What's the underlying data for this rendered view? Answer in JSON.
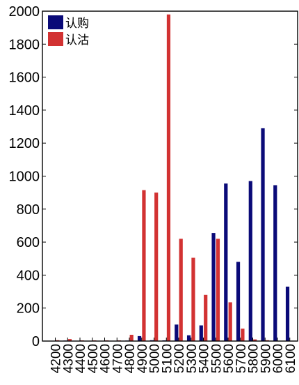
{
  "chart_data": {
    "type": "bar",
    "title": "",
    "xlabel": "",
    "ylabel": "",
    "categories": [
      "4200",
      "4300",
      "4400",
      "4500",
      "4600",
      "4700",
      "4800",
      "4900",
      "5000",
      "5100",
      "5200",
      "5300",
      "5400",
      "5500",
      "5600",
      "5700",
      "5800",
      "5900",
      "6000",
      "6100"
    ],
    "series": [
      {
        "name": "认购",
        "color": "#0a0a78",
        "values": [
          2,
          3,
          1,
          1,
          1,
          2,
          3,
          30,
          5,
          4,
          100,
          35,
          95,
          655,
          955,
          480,
          970,
          1290,
          945,
          330
        ]
      },
      {
        "name": "认沽",
        "color": "#d23232",
        "values": [
          5,
          12,
          4,
          4,
          4,
          4,
          38,
          915,
          900,
          1980,
          620,
          505,
          280,
          620,
          235,
          75,
          10,
          5,
          2,
          2
        ]
      }
    ],
    "ylim": [
      0,
      2000
    ],
    "yticks": [
      0,
      200,
      400,
      600,
      800,
      1000,
      1200,
      1400,
      1600,
      1800,
      2000
    ],
    "legend_position": "top-left",
    "grid": false
  }
}
